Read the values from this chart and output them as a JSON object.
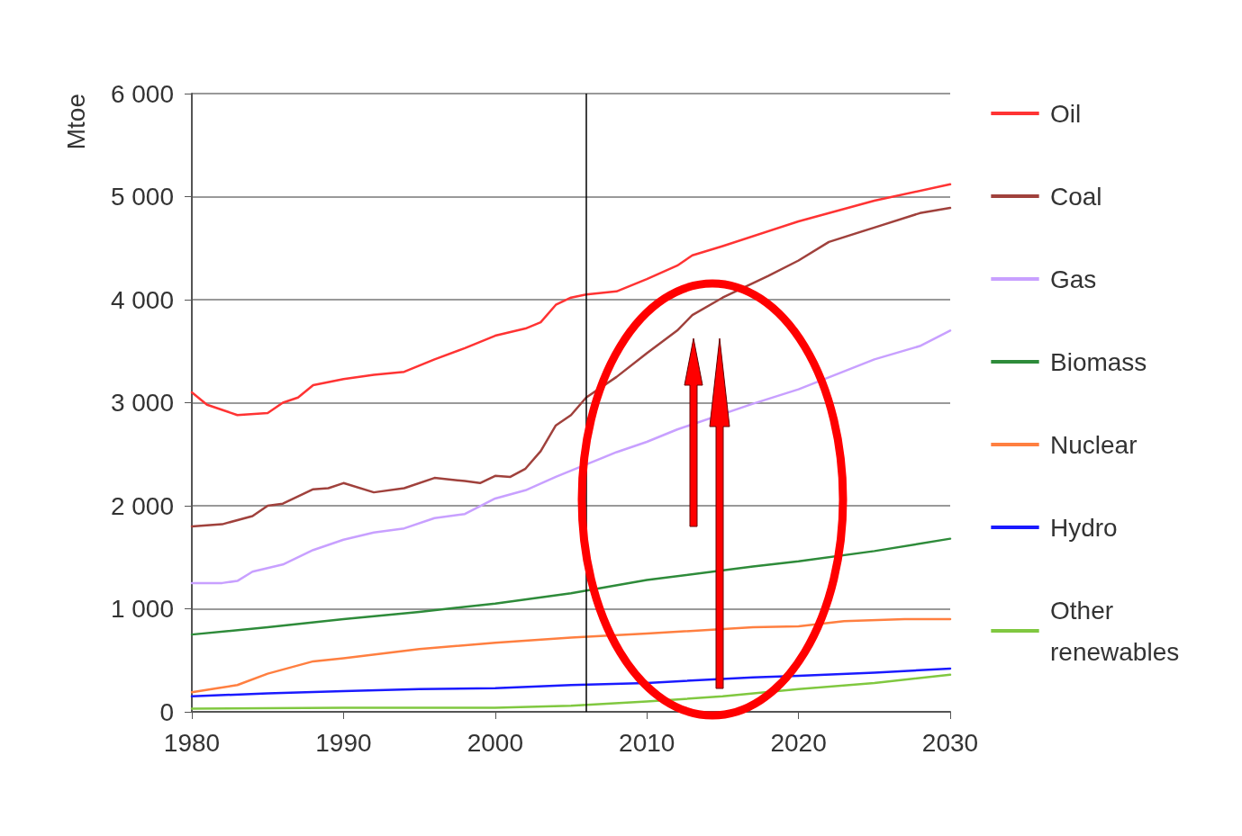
{
  "chart_data": {
    "type": "line",
    "ylabel": "Mtoe",
    "xlim": [
      1980,
      2030
    ],
    "xticks": [
      1980,
      1990,
      2000,
      2010,
      2020,
      2030
    ],
    "ylim": [
      0,
      6000
    ],
    "yticks": [
      0,
      {
        "value": 1000,
        "label": "1 000"
      },
      {
        "value": 2000,
        "label": "2 000"
      },
      {
        "value": 3000,
        "label": "3 000"
      },
      {
        "value": 4000,
        "label": "4 000"
      },
      {
        "value": 5000,
        "label": "5 000"
      },
      {
        "value": 6000,
        "label": "6 000"
      }
    ],
    "grid": "y",
    "legend": "right",
    "marker": "none",
    "line_style": "solid",
    "ref_lines": [
      {
        "axis": "x",
        "value": 2006,
        "color": "#000000"
      }
    ],
    "series": [
      {
        "name": "Oil",
        "color": "#ff3333",
        "x": [
          1980,
          1981,
          1983,
          1985,
          1986,
          1987,
          1988,
          1990,
          1992,
          1994,
          1996,
          1998,
          2000,
          2002,
          2003,
          2004,
          2005,
          2006,
          2008,
          2010,
          2012,
          2013,
          2015,
          2020,
          2025,
          2030
        ],
        "values": [
          3100,
          2980,
          2880,
          2900,
          3000,
          3050,
          3170,
          3230,
          3270,
          3300,
          3420,
          3530,
          3650,
          3720,
          3780,
          3950,
          4020,
          4050,
          4080,
          4200,
          4330,
          4430,
          4520,
          4760,
          4960,
          5120
        ]
      },
      {
        "name": "Coal",
        "color": "#a0413c",
        "x": [
          1980,
          1982,
          1984,
          1985,
          1986,
          1988,
          1989,
          1990,
          1992,
          1994,
          1996,
          1998,
          1999,
          2000,
          2001,
          2002,
          2003,
          2004,
          2005,
          2006,
          2008,
          2010,
          2012,
          2013,
          2015,
          2018,
          2020,
          2022,
          2025,
          2028,
          2030
        ],
        "values": [
          1800,
          1820,
          1900,
          2000,
          2020,
          2160,
          2170,
          2220,
          2130,
          2170,
          2270,
          2240,
          2220,
          2290,
          2280,
          2360,
          2530,
          2780,
          2880,
          3050,
          3250,
          3480,
          3700,
          3850,
          4020,
          4230,
          4380,
          4560,
          4700,
          4840,
          4890
        ]
      },
      {
        "name": "Gas",
        "color": "#c8a0ff",
        "x": [
          1980,
          1982,
          1983,
          1984,
          1986,
          1988,
          1990,
          1992,
          1994,
          1996,
          1998,
          2000,
          2002,
          2004,
          2006,
          2008,
          2010,
          2012,
          2017,
          2020,
          2025,
          2028,
          2030
        ],
        "values": [
          1250,
          1250,
          1270,
          1360,
          1430,
          1570,
          1670,
          1740,
          1780,
          1880,
          1920,
          2070,
          2150,
          2280,
          2400,
          2520,
          2620,
          2740,
          2990,
          3130,
          3420,
          3550,
          3700
        ]
      },
      {
        "name": "Biomass",
        "color": "#2e8b3a",
        "x": [
          1980,
          1985,
          1990,
          1995,
          2000,
          2005,
          2010,
          2017,
          2020,
          2025,
          2030
        ],
        "values": [
          750,
          820,
          900,
          970,
          1050,
          1150,
          1280,
          1410,
          1460,
          1560,
          1680
        ]
      },
      {
        "name": "Nuclear",
        "color": "#ff7f40",
        "x": [
          1980,
          1983,
          1985,
          1988,
          1990,
          1995,
          2000,
          2005,
          2010,
          2017,
          2020,
          2023,
          2027,
          2030
        ],
        "values": [
          190,
          260,
          370,
          490,
          520,
          610,
          670,
          720,
          760,
          820,
          830,
          880,
          900,
          900
        ]
      },
      {
        "name": "Hydro",
        "color": "#1a1aff",
        "x": [
          1980,
          1985,
          1990,
          1995,
          2000,
          2005,
          2010,
          2017,
          2020,
          2025,
          2030
        ],
        "values": [
          150,
          180,
          200,
          220,
          230,
          260,
          280,
          335,
          350,
          380,
          420
        ]
      },
      {
        "name": "Other renewables",
        "color": "#80c840",
        "x": [
          1980,
          1990,
          2000,
          2005,
          2010,
          2015,
          2020,
          2025,
          2030
        ],
        "values": [
          30,
          40,
          40,
          60,
          100,
          150,
          220,
          280,
          360
        ]
      }
    ]
  }
}
